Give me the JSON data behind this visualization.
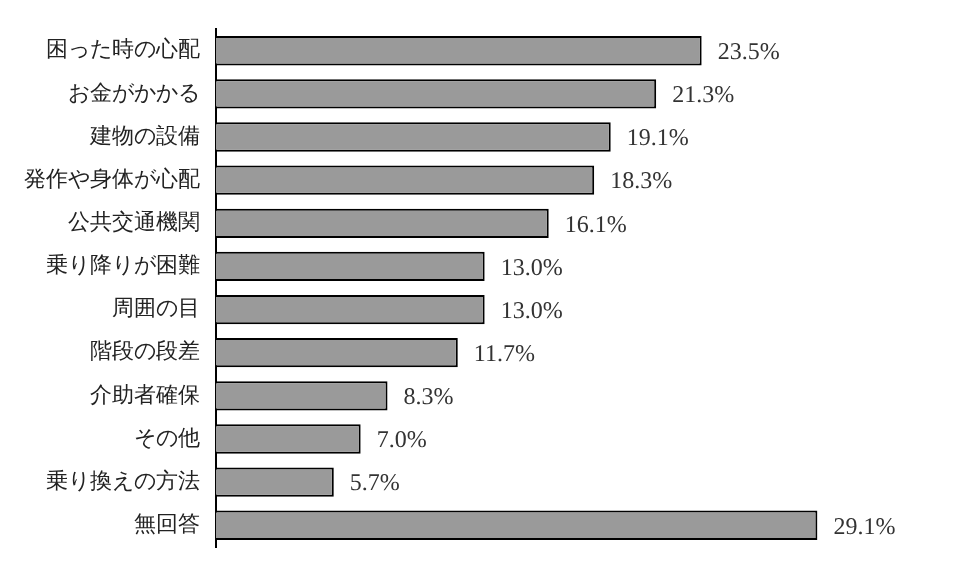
{
  "chart_data": {
    "type": "bar",
    "orientation": "horizontal",
    "categories": [
      "困った時の心配",
      "お金がかかる",
      "建物の設備",
      "発作や身体が心配",
      "公共交通機関",
      "乗り降りが困難",
      "周囲の目",
      "階段の段差",
      "介助者確保",
      "その他",
      "乗り換えの方法",
      "無回答"
    ],
    "values": [
      23.5,
      21.3,
      19.1,
      18.3,
      16.1,
      13.0,
      13.0,
      11.7,
      8.3,
      7.0,
      5.7,
      29.1
    ],
    "value_labels": [
      "23.5%",
      "21.3%",
      "19.1%",
      "18.3%",
      "16.1%",
      "13.0%",
      "13.0%",
      "11.7%",
      "8.3%",
      "7.0%",
      "5.7%",
      "29.1%"
    ],
    "color": "#9a9a9a",
    "tick_labels": "y"
  }
}
